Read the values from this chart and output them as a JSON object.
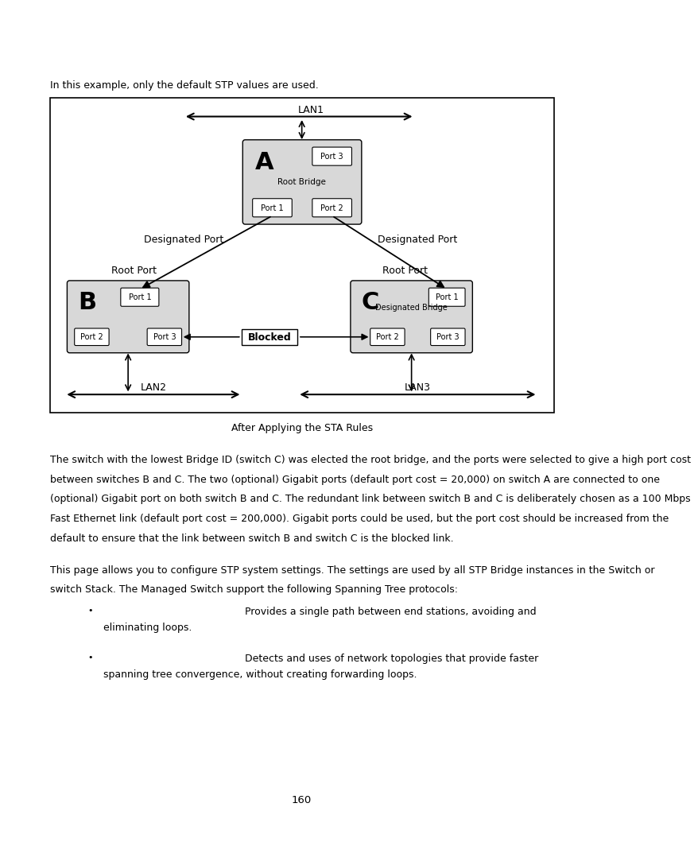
{
  "page_bg": "#ffffff",
  "text_color": "#000000",
  "intro_text": "In this example, only the default STP values are used.",
  "caption": "After Applying the STA Rules",
  "para1_lines": [
    "The switch with the lowest Bridge ID (switch C) was elected the root bridge, and the ports were selected to give a high port cost",
    "between switches B and C. The two (optional) Gigabit ports (default port cost = 20,000) on switch A are connected to one",
    "(optional) Gigabit port on both switch B and C. The redundant link between switch B and C is deliberately chosen as a 100 Mbps",
    "Fast Ethernet link (default port cost = 200,000). Gigabit ports could be used, but the port cost should be increased from the",
    "default to ensure that the link between switch B and switch C is the blocked link."
  ],
  "para2_lines": [
    "This page allows you to configure STP system settings. The settings are used by all STP Bridge instances in the Switch or",
    "switch Stack. The Managed Switch support the following Spanning Tree protocols:"
  ],
  "bullet1_right": "Provides a single path between end stations, avoiding and",
  "bullet1_cont": "eliminating loops.",
  "bullet2_right": "Detects and uses of network topologies that provide faster",
  "bullet2_cont": "spanning tree convergence, without creating forwarding loops.",
  "page_number": "160",
  "box_gray": "#d8d8d8",
  "box_white": "#ffffff"
}
